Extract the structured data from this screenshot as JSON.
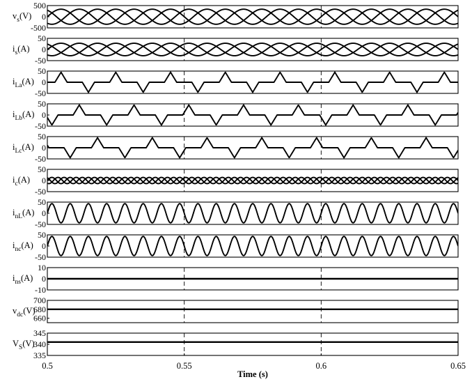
{
  "chart_data": {
    "type": "line",
    "xlabel": "Time (s)",
    "xlim": [
      0.5,
      0.65
    ],
    "xticks": [
      "0.5",
      "0.55",
      "0.6",
      "0.65"
    ],
    "vertical_markers": [
      0.55,
      0.6
    ],
    "panels": [
      {
        "id": "vs",
        "label_main": "v",
        "label_sub": "s",
        "label_unit": "(V)",
        "ylim": [
          -500,
          500
        ],
        "yticks": [
          "500",
          "0",
          "-500"
        ],
        "signal": {
          "kind": "three_phase_sine",
          "amplitude": 338,
          "frequency_hz": 50
        }
      },
      {
        "id": "is",
        "label_main": "i",
        "label_sub": "s",
        "label_unit": "(A)",
        "ylim": [
          -50,
          50
        ],
        "yticks": [
          "50",
          "0",
          "-50"
        ],
        "signal": {
          "kind": "three_phase_sine",
          "amplitude": 28,
          "frequency_hz": 50
        }
      },
      {
        "id": "iLa",
        "label_main": "i",
        "label_sub": "La",
        "label_unit": "(A)",
        "ylim": [
          -50,
          50
        ],
        "yticks": [
          "50",
          "0",
          "-50"
        ],
        "signal": {
          "kind": "single_phase_pulsed_load",
          "amplitude": 45,
          "frequency_hz": 50,
          "phase_deg": 0
        }
      },
      {
        "id": "iLb",
        "label_main": "i",
        "label_sub": "Lb",
        "label_unit": "(A)",
        "ylim": [
          -50,
          50
        ],
        "yticks": [
          "50",
          "0",
          "-50"
        ],
        "signal": {
          "kind": "single_phase_pulsed_load",
          "amplitude": 45,
          "frequency_hz": 50,
          "phase_deg": -120
        }
      },
      {
        "id": "iLc",
        "label_main": "i",
        "label_sub": "Lc",
        "label_unit": "(A)",
        "ylim": [
          -50,
          50
        ],
        "yticks": [
          "50",
          "0",
          "-50"
        ],
        "signal": {
          "kind": "single_phase_pulsed_load",
          "amplitude": 45,
          "frequency_hz": 50,
          "phase_deg": 120
        }
      },
      {
        "id": "ic",
        "label_main": "i",
        "label_sub": "c",
        "label_unit": "(A)",
        "ylim": [
          -50,
          50
        ],
        "yticks": [
          "50",
          "0",
          "-50"
        ],
        "signal": {
          "kind": "three_phase_sine",
          "amplitude": 14,
          "frequency_hz": 150
        }
      },
      {
        "id": "inL",
        "label_main": "i",
        "label_sub": "nL",
        "label_unit": "(A)",
        "ylim": [
          -50,
          50
        ],
        "yticks": [
          "50",
          "0",
          "-50"
        ],
        "signal": {
          "kind": "sine",
          "amplitude": 43,
          "frequency_hz": 150
        }
      },
      {
        "id": "inc",
        "label_main": "i",
        "label_sub": "nc",
        "label_unit": "(A)",
        "ylim": [
          -50,
          50
        ],
        "yticks": [
          "50",
          "0",
          "-50"
        ],
        "signal": {
          "kind": "sine",
          "amplitude": 43,
          "frequency_hz": 150
        }
      },
      {
        "id": "ins",
        "label_main": "i",
        "label_sub": "ns",
        "label_unit": "(A)",
        "ylim": [
          -10,
          10
        ],
        "yticks": [
          "10",
          "0",
          "-10"
        ],
        "signal": {
          "kind": "constant",
          "value": 0
        }
      },
      {
        "id": "vdc",
        "label_main": "v",
        "label_sub": "dc",
        "label_unit": "(V)",
        "ylim": [
          650,
          700
        ],
        "yticks": [
          "700",
          "680",
          "660"
        ],
        "signal": {
          "kind": "constant",
          "value": 680
        }
      },
      {
        "id": "Vs",
        "label_main": "V",
        "label_sub": "S",
        "label_unit": "(V)",
        "ylim": [
          335,
          345
        ],
        "yticks": [
          "345",
          "340",
          "335"
        ],
        "signal": {
          "kind": "constant",
          "value": 341
        }
      }
    ]
  }
}
